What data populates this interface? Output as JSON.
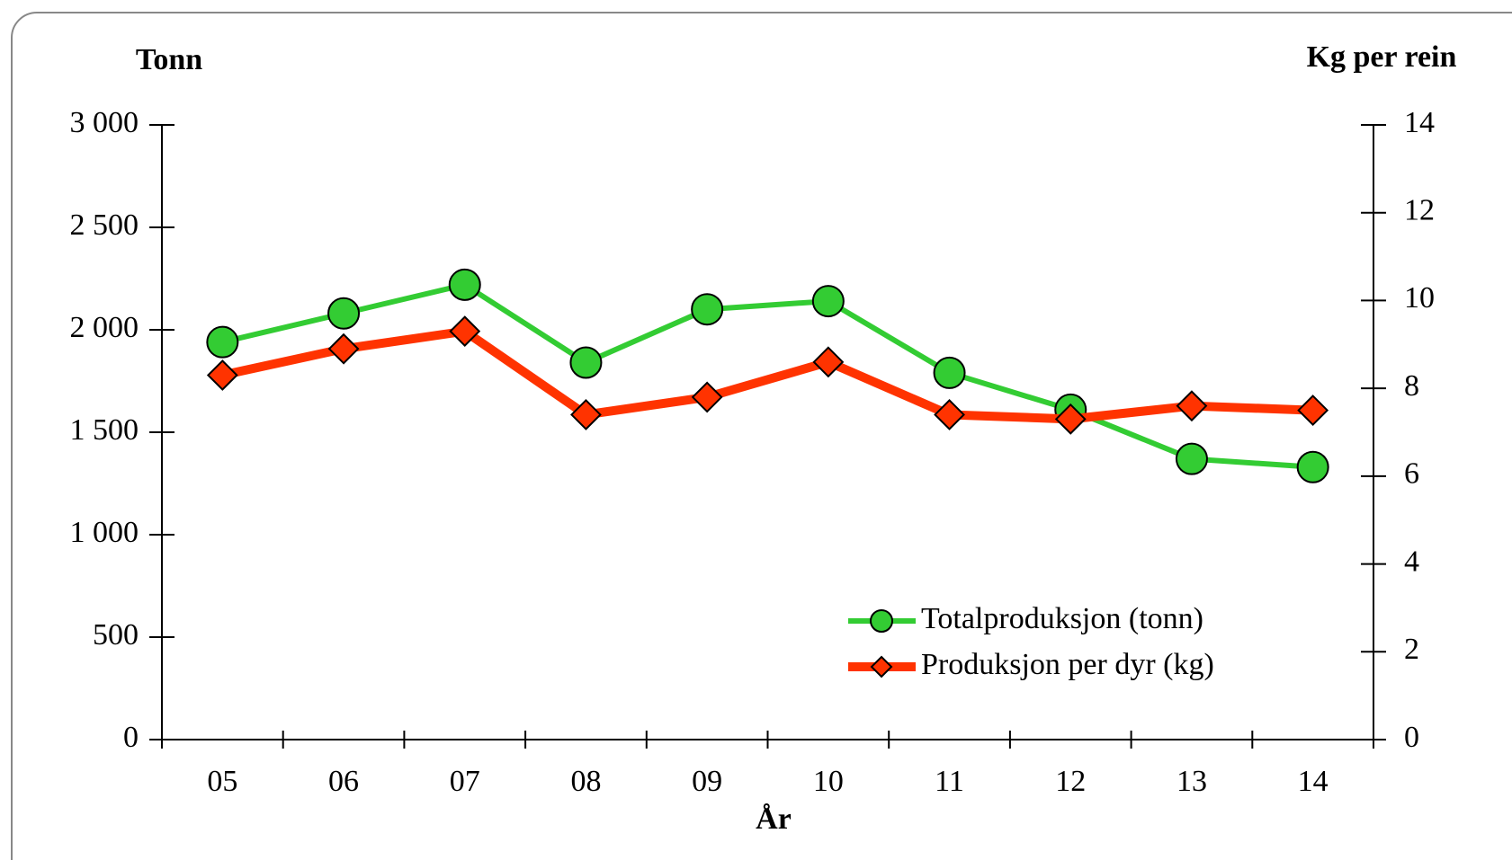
{
  "chart_data": {
    "type": "line",
    "y_label": "Tonn",
    "y2_label": "Kg per rein",
    "x_label": "År",
    "categories": [
      "05",
      "06",
      "07",
      "08",
      "09",
      "10",
      "11",
      "12",
      "13",
      "14"
    ],
    "series": [
      {
        "name": "Totalproduksjon (tonn)",
        "color": "#33cc33",
        "marker": "circle",
        "values": [
          1940,
          2080,
          2220,
          1840,
          2100,
          2140,
          1790,
          1610,
          1370,
          1330
        ]
      },
      {
        "name": "Produksjon per dyr (kg)",
        "color": "#ff3300",
        "marker": "diamond",
        "axis": "y2",
        "values": [
          8.3,
          8.9,
          9.3,
          7.4,
          7.8,
          8.6,
          7.4,
          7.3,
          7.6,
          7.5
        ]
      }
    ],
    "ylim": [
      0,
      3000
    ],
    "yticks": [
      0,
      500,
      {
        "value": 1000,
        "label": "1 000"
      },
      {
        "value": 1500,
        "label": "1 500"
      },
      {
        "value": 2000,
        "label": "2 000"
      },
      {
        "value": 2500,
        "label": "2 500"
      },
      {
        "value": 3000,
        "label": "3 000"
      }
    ],
    "y2lim": [
      0,
      14
    ],
    "y2ticks": [
      0,
      2,
      4,
      6,
      8,
      10,
      12,
      14
    ],
    "legend": "lower right"
  }
}
